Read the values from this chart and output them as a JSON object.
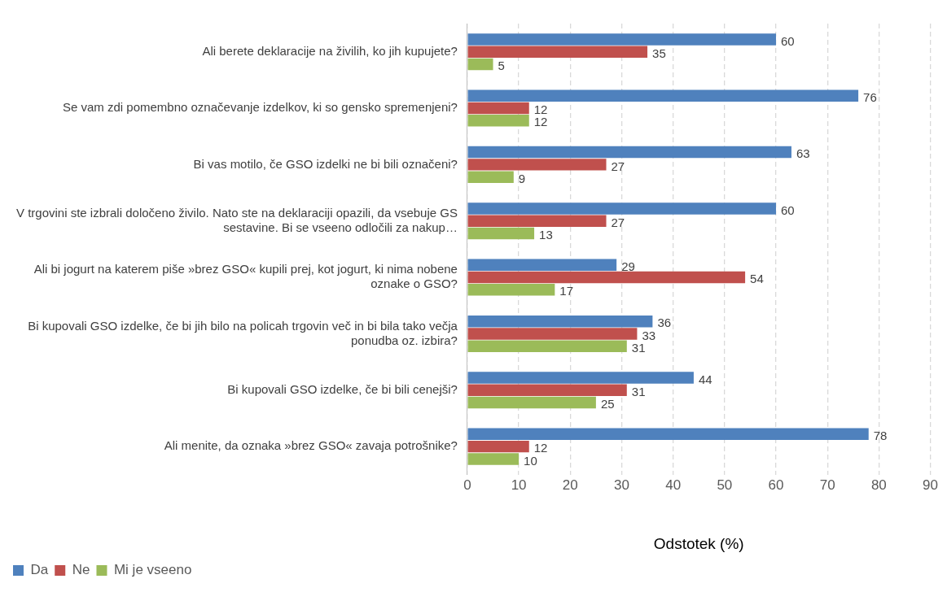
{
  "chart_data": {
    "type": "bar",
    "orientation": "horizontal",
    "categories": [
      "Ali berete deklaracije na živilih, ko jih kupujete?",
      "Se vam zdi pomembno označevanje izdelkov, ki so gensko spremenjeni?",
      "Bi vas motilo, če GSO izdelki ne bi bili označeni?",
      "V trgovini ste izbrali določeno živilo. Nato ste na deklaraciji opazili, da vsebuje GS sestavine. Bi se vseeno odločili za nakup…",
      "Ali bi jogurt na katerem piše »brez GSO« kupili prej, kot jogurt, ki nima nobene oznake o GSO?",
      "Bi kupovali GSO izdelke, če bi jih bilo na policah trgovin več in bi bila tako večja ponudba oz. izbira?",
      "Bi kupovali GSO izdelke, če bi bili cenejši?",
      "Ali menite, da oznaka »brez GSO« zavaja potrošnike?"
    ],
    "series": [
      {
        "name": "Da",
        "color": "#4f81bd",
        "values": [
          60,
          76,
          63,
          60,
          29,
          36,
          44,
          78
        ]
      },
      {
        "name": "Ne",
        "color": "#c0504d",
        "values": [
          35,
          12,
          27,
          27,
          54,
          33,
          31,
          12
        ]
      },
      {
        "name": "Mi je vseeno",
        "color": "#9bbb59",
        "values": [
          5,
          12,
          9,
          13,
          17,
          31,
          25,
          10
        ]
      }
    ],
    "xlabel": "Odstotek (%)",
    "xlim": [
      0,
      90
    ],
    "xticks": [
      0,
      10,
      20,
      30,
      40,
      50,
      60,
      70,
      80,
      90
    ],
    "grid": "x",
    "legend": "bottom left",
    "data_labels": true
  }
}
